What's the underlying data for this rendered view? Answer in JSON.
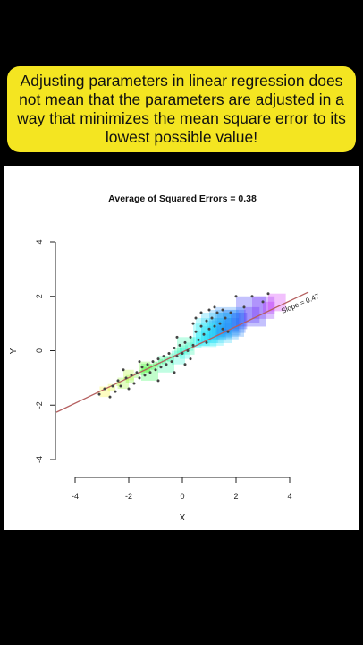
{
  "banner": {
    "text": "Adjusting parameters in linear regression does not mean that the parameters are adjusted in a way that minimizes the mean square error to its lowest possible value!"
  },
  "chart_data": {
    "type": "scatter",
    "title": "Average of Squared Errors = 0.38",
    "xlabel": "X",
    "ylabel": "Y",
    "xlim": [
      -4,
      4
    ],
    "ylim": [
      -4,
      4
    ],
    "xticks": [
      -4,
      -2,
      0,
      2,
      4
    ],
    "yticks": [
      -4,
      -2,
      0,
      2,
      4
    ],
    "grid": false,
    "line": {
      "slope": 0.47,
      "intercept": -0.05,
      "color": "#b56060"
    },
    "slope_label": "Slope = 0.47",
    "points": [
      [
        -3.1,
        -1.6
      ],
      [
        -2.9,
        -1.4
      ],
      [
        -2.7,
        -1.7
      ],
      [
        -2.6,
        -1.3
      ],
      [
        -2.5,
        -1.5
      ],
      [
        -2.4,
        -1.1
      ],
      [
        -2.3,
        -1.3
      ],
      [
        -2.1,
        -1.0
      ],
      [
        -2.0,
        -1.4
      ],
      [
        -1.9,
        -0.9
      ],
      [
        -1.8,
        -1.2
      ],
      [
        -1.7,
        -0.8
      ],
      [
        -1.6,
        -1.0
      ],
      [
        -1.5,
        -0.6
      ],
      [
        -1.4,
        -0.9
      ],
      [
        -1.3,
        -0.5
      ],
      [
        -1.2,
        -0.8
      ],
      [
        -1.1,
        -0.4
      ],
      [
        -1.0,
        -0.7
      ],
      [
        -0.9,
        -0.3
      ],
      [
        -0.8,
        -0.6
      ],
      [
        -0.7,
        -0.2
      ],
      [
        -0.6,
        -0.5
      ],
      [
        -0.5,
        -0.1
      ],
      [
        -0.4,
        -0.4
      ],
      [
        -0.3,
        0.1
      ],
      [
        -0.2,
        -0.2
      ],
      [
        -0.1,
        0.2
      ],
      [
        0.0,
        -0.1
      ],
      [
        0.1,
        0.3
      ],
      [
        0.2,
        0.0
      ],
      [
        0.3,
        0.5
      ],
      [
        0.4,
        0.2
      ],
      [
        0.5,
        0.7
      ],
      [
        0.6,
        0.4
      ],
      [
        0.7,
        0.9
      ],
      [
        0.8,
        0.6
      ],
      [
        0.9,
        1.1
      ],
      [
        1.0,
        0.8
      ],
      [
        1.1,
        1.2
      ],
      [
        1.2,
        0.9
      ],
      [
        1.3,
        1.4
      ],
      [
        1.4,
        1.0
      ],
      [
        1.5,
        1.5
      ],
      [
        1.6,
        1.2
      ],
      [
        1.7,
        0.7
      ],
      [
        1.8,
        1.4
      ],
      [
        2.0,
        2.0
      ],
      [
        2.3,
        1.6
      ],
      [
        2.6,
        2.0
      ],
      [
        3.0,
        1.8
      ],
      [
        3.2,
        2.1
      ],
      [
        -0.2,
        0.5
      ],
      [
        0.1,
        -0.5
      ],
      [
        0.5,
        1.2
      ],
      [
        0.9,
        0.3
      ],
      [
        1.2,
        1.6
      ],
      [
        -0.9,
        -1.1
      ],
      [
        -1.6,
        -0.4
      ],
      [
        0.3,
        -0.3
      ],
      [
        0.7,
        1.4
      ],
      [
        1.0,
        1.5
      ],
      [
        -0.3,
        -0.8
      ],
      [
        -2.2,
        -0.7
      ],
      [
        1.5,
        0.8
      ],
      [
        0.4,
        1.0
      ]
    ]
  }
}
